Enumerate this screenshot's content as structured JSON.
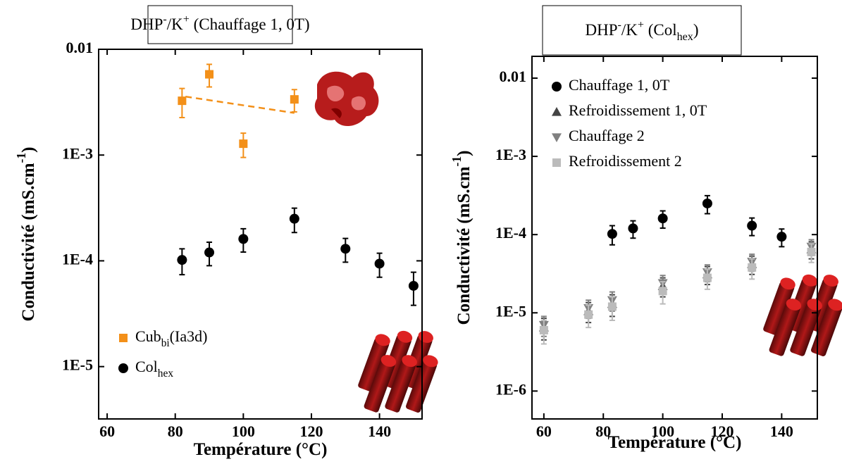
{
  "chart_data": [
    {
      "type": "scatter",
      "title": [
        {
          "t": "DHP"
        },
        {
          "sup": "-"
        },
        {
          "t": "/K"
        },
        {
          "sup": "+"
        },
        {
          "t": " (Chauffage 1, 0T)"
        }
      ],
      "xlabel": [
        {
          "t": "Température (°C)"
        }
      ],
      "ylabel": [
        {
          "t": "Conductivité (mS.cm"
        },
        {
          "sup": "-1"
        },
        {
          "t": ")"
        }
      ],
      "xlim": [
        57.5,
        152.5
      ],
      "xticks": [
        60,
        80,
        100,
        120,
        140
      ],
      "ylim": [
        3.2e-06,
        0.01
      ],
      "log_y": true,
      "yticks": [
        0.01,
        {
          "value": 0.001,
          "label": "1E-3"
        },
        {
          "value": 0.0001,
          "label": "1E-4"
        },
        {
          "value": 1e-05,
          "label": "1E-5"
        }
      ],
      "legend": "lower left",
      "series": [
        {
          "name": [
            {
              "t": "Cub"
            },
            {
              "sub": "bi"
            },
            {
              "t": "(Ia3d)"
            }
          ],
          "color": "#f39019",
          "marker": "square",
          "x": [
            82,
            90,
            100,
            115
          ],
          "values": [
            0.00326,
            0.0058,
            0.00128,
            0.00336
          ],
          "errors": [
            0.001,
            0.0014,
            0.00033,
            0.0008
          ]
        },
        {
          "name": [
            {
              "t": "Col"
            },
            {
              "sub": "hex"
            }
          ],
          "color": "#000000",
          "marker": "circle",
          "x": [
            82,
            90,
            100,
            115,
            130,
            140,
            150
          ],
          "values": [
            0.000102,
            0.00012,
            0.000161,
            0.00025,
            0.00013,
            9.4e-05,
            5.8e-05
          ],
          "errors": [
            2.8e-05,
            3e-05,
            4e-05,
            6.5e-05,
            3.3e-05,
            2.4e-05,
            2e-05
          ]
        }
      ],
      "fit": {
        "color": "#f39019",
        "x": [
          83,
          115
        ],
        "values": [
          0.00357,
          0.0025
        ]
      }
    },
    {
      "type": "scatter",
      "title": [
        {
          "t": "DHP"
        },
        {
          "sup": "-"
        },
        {
          "t": "/K"
        },
        {
          "sup": "+"
        },
        {
          "t": " (Col"
        },
        {
          "sub": "hex"
        },
        {
          "t": ")"
        }
      ],
      "xlabel": [
        {
          "t": "Température (°C)"
        }
      ],
      "ylabel": [
        {
          "t": "Conductivité (mS.cm"
        },
        {
          "sup": "-1"
        },
        {
          "t": ")"
        }
      ],
      "xlim": [
        56,
        152
      ],
      "xticks": [
        60,
        80,
        100,
        120,
        140
      ],
      "ylim": [
        4.4e-07,
        0.019
      ],
      "log_y": true,
      "yticks": [
        0.01,
        {
          "value": 0.001,
          "label": "1E-3"
        },
        {
          "value": 0.0001,
          "label": "1E-4"
        },
        {
          "value": 1e-05,
          "label": "1E-5"
        },
        {
          "value": 1e-06,
          "label": "1E-6"
        }
      ],
      "legend": "upper left",
      "series": [
        {
          "name": [
            {
              "t": "Chauffage 1, 0T"
            }
          ],
          "color": "#000000",
          "marker": "circle",
          "x": [
            83,
            90,
            100,
            115,
            130,
            140
          ],
          "values": [
            0.000102,
            0.00012,
            0.000161,
            0.00025,
            0.00013,
            9.4e-05
          ],
          "errors": [
            2.8e-05,
            3e-05,
            4e-05,
            6.5e-05,
            3.3e-05,
            2.4e-05
          ]
        },
        {
          "name": [
            {
              "t": "Refroidissement 1, 0T"
            }
          ],
          "color": "#444444",
          "marker": "triangle-up",
          "x": [
            60,
            75,
            83,
            100,
            115,
            130,
            150
          ],
          "values": [
            6.5e-06,
            1.05e-05,
            1.3e-05,
            2.2e-05,
            3.1e-05,
            4.2e-05,
            6.5e-05
          ],
          "errors": [
            2e-06,
            3e-06,
            4e-06,
            6e-06,
            8e-06,
            1.1e-05,
            1.6e-05
          ]
        },
        {
          "name": [
            {
              "t": "Chauffage 2"
            }
          ],
          "color": "#808080",
          "marker": "triangle-down",
          "x": [
            60,
            75,
            83,
            100,
            115,
            130,
            150
          ],
          "values": [
            7e-06,
            1.15e-05,
            1.45e-05,
            2.4e-05,
            3.3e-05,
            4.5e-05,
            7e-05
          ],
          "errors": [
            2e-06,
            3e-06,
            4e-06,
            6e-06,
            8e-06,
            1.1e-05,
            1.6e-05
          ]
        },
        {
          "name": [
            {
              "t": "Refroidissement 2"
            }
          ],
          "color": "#bbbbbb",
          "marker": "square",
          "x": [
            60,
            75,
            83,
            100,
            115,
            130,
            150
          ],
          "values": [
            6e-06,
            9.5e-06,
            1.2e-05,
            1.9e-05,
            2.8e-05,
            3.8e-05,
            6e-05
          ],
          "errors": [
            2e-06,
            3e-06,
            4e-06,
            6e-06,
            8e-06,
            1.1e-05,
            1.6e-05
          ]
        }
      ]
    }
  ]
}
